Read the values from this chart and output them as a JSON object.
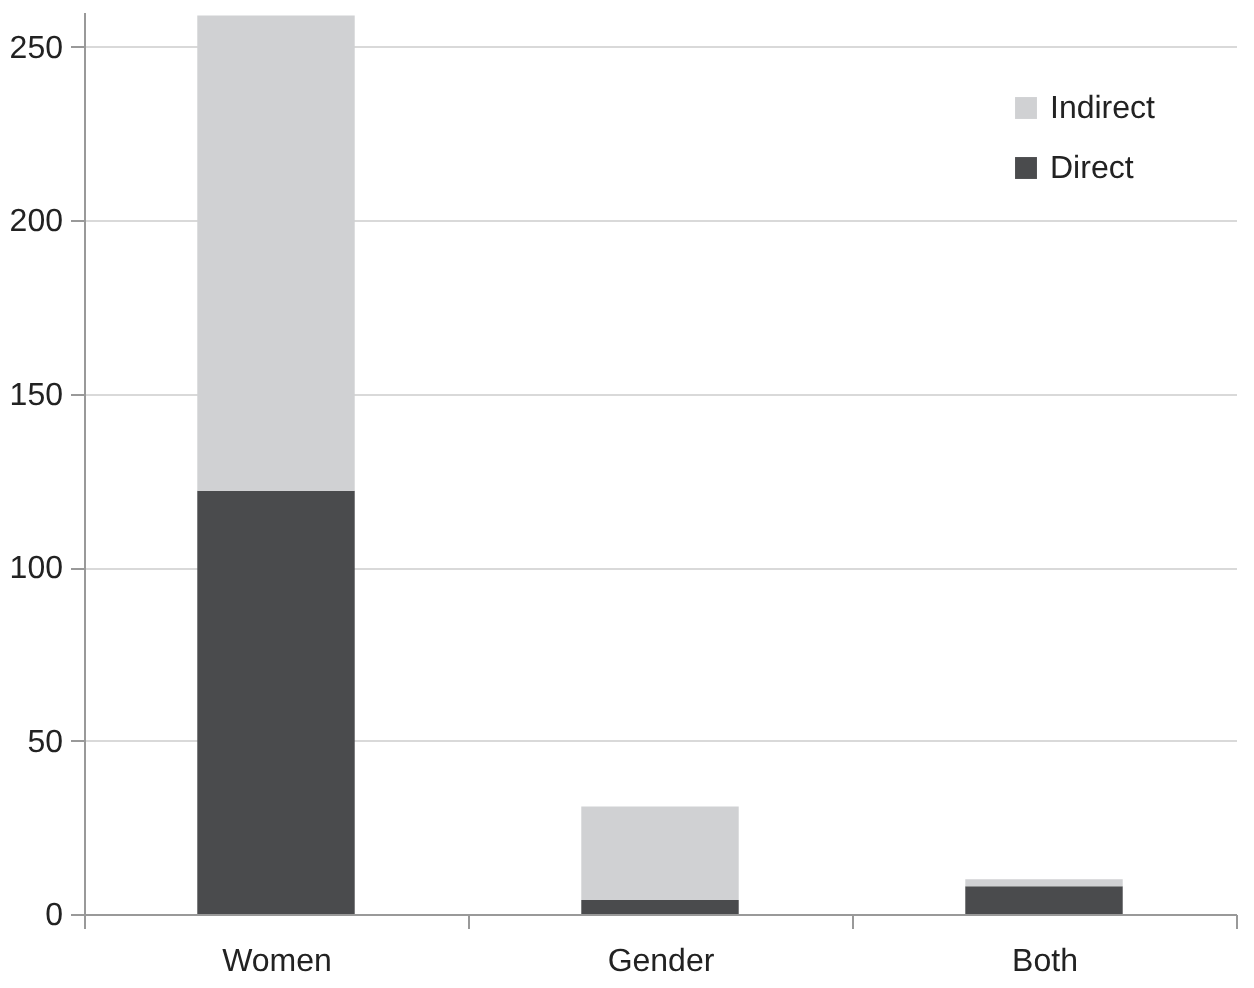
{
  "chart_data": {
    "type": "bar",
    "categories": [
      "Women",
      "Gender",
      "Both"
    ],
    "stacked": true,
    "series": [
      {
        "name": "Direct",
        "color": "#4a4b4d",
        "values": [
          122,
          4,
          8
        ]
      },
      {
        "name": "Indirect",
        "color": "#d0d1d3",
        "values": [
          137,
          27,
          2
        ]
      }
    ],
    "ylim": [
      0,
      260
    ],
    "yticks": [
      0,
      50,
      100,
      150,
      200,
      250
    ],
    "grid": "y",
    "legend": "top right"
  }
}
